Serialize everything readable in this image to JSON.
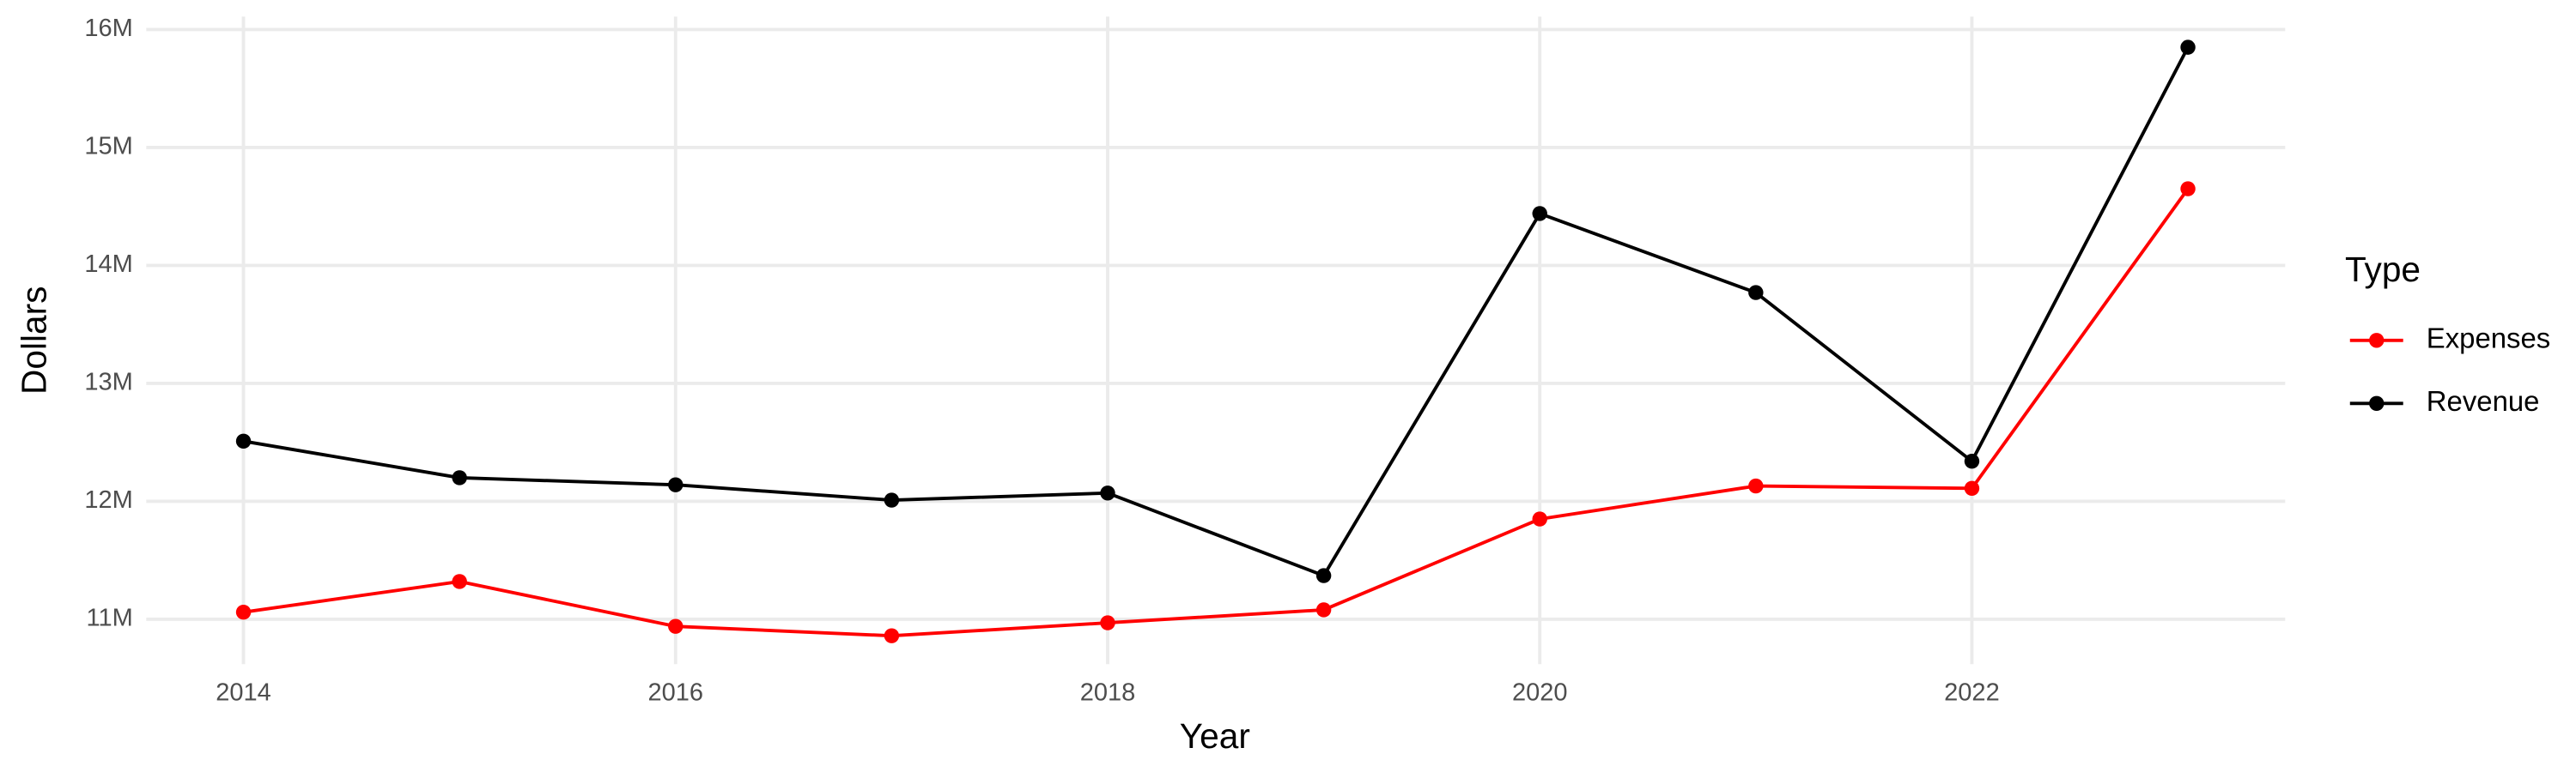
{
  "chart_data": {
    "type": "line",
    "x_label": "Year",
    "y_label": "Dollars",
    "legend_title": "Type",
    "x": [
      2014,
      2015,
      2016,
      2017,
      2018,
      2019,
      2020,
      2021,
      2022,
      2023
    ],
    "series": [
      {
        "name": "Expenses",
        "color": "#ff0000",
        "values": [
          11060000,
          11320000,
          10940000,
          10860000,
          10970000,
          11080000,
          11850000,
          12130000,
          12110000,
          14650000
        ]
      },
      {
        "name": "Revenue",
        "color": "#000000",
        "values": [
          12510000,
          12200000,
          12140000,
          12010000,
          12070000,
          11370000,
          14440000,
          13770000,
          12340000,
          15850000
        ]
      }
    ],
    "xlim": [
      2013.55,
      2023.45
    ],
    "xticks": [
      2014,
      2016,
      2018,
      2020,
      2022
    ],
    "ylim": [
      10620000,
      16110000
    ],
    "yticks": [
      {
        "value": 11000000,
        "label": "11M"
      },
      {
        "value": 12000000,
        "label": "12M"
      },
      {
        "value": 13000000,
        "label": "13M"
      },
      {
        "value": 14000000,
        "label": "14M"
      },
      {
        "value": 15000000,
        "label": "15M"
      },
      {
        "value": 16000000,
        "label": "16M"
      }
    ],
    "grid": true,
    "legend": "right"
  }
}
